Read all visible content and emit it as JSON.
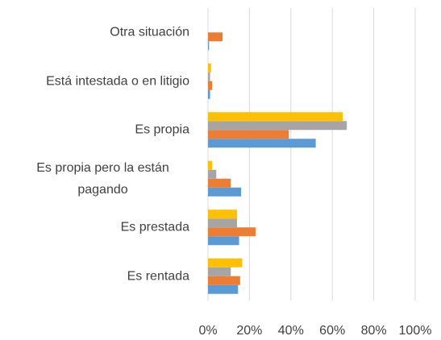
{
  "chart_data": {
    "type": "hbar",
    "categories": [
      "Otra situación",
      "Está intestada o en litigio",
      "Es propia",
      "Es propia pero la están pagando",
      "Es prestada",
      "Es rentada"
    ],
    "series": [
      {
        "color": "#5b9bd5",
        "values": [
          0.5,
          1,
          52,
          16,
          15,
          14.5
        ]
      },
      {
        "color": "#ed7d31",
        "values": [
          7,
          2,
          39,
          11,
          23,
          15.5
        ]
      },
      {
        "color": "#a5a5a5",
        "values": [
          0,
          1,
          67,
          4,
          14,
          11
        ]
      },
      {
        "color": "#ffc000",
        "values": [
          0,
          1.5,
          65,
          2,
          14,
          16.5
        ]
      }
    ],
    "xlim": [
      0,
      100
    ],
    "xticks": [
      {
        "value": 0,
        "label": "0%"
      },
      {
        "value": 20,
        "label": "20%"
      },
      {
        "value": 40,
        "label": "40%"
      },
      {
        "value": 60,
        "label": "60%"
      },
      {
        "value": 80,
        "label": "80%"
      },
      {
        "value": 100,
        "label": "100%"
      }
    ],
    "grid": true
  }
}
